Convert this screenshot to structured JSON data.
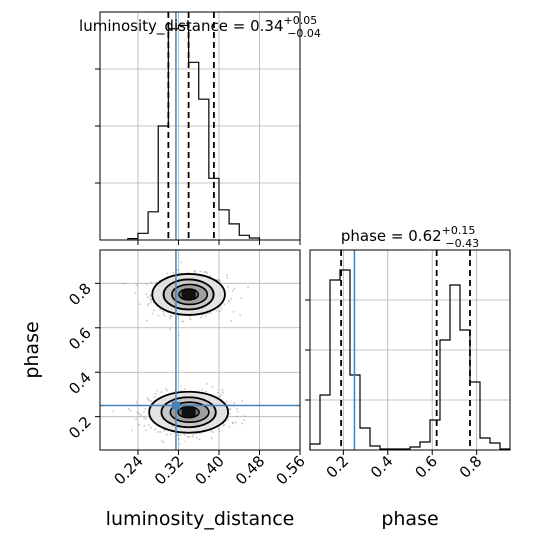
{
  "chart_data": {
    "type": "corner",
    "parameters": [
      "luminosity_distance",
      "phase"
    ],
    "truths": {
      "luminosity_distance": 0.315,
      "phase": 0.25
    },
    "titles": [
      {
        "param": "luminosity_distance",
        "text": "luminosity_distance = 0.34",
        "plus": "+0.05",
        "minus": "−0.04"
      },
      {
        "param": "phase",
        "text": "phase = 0.62",
        "plus": "+0.15",
        "minus": "−0.43"
      }
    ],
    "axis_labels": {
      "x": [
        "luminosity_distance",
        "phase"
      ],
      "y": [
        "phase"
      ]
    },
    "xlim_luminosity_distance": [
      0.165,
      0.56
    ],
    "xlim_phase": [
      0.05,
      0.95
    ],
    "ylim_phase": [
      0.05,
      0.95
    ],
    "ticks_luminosity_distance": [
      {
        "value": 0.24,
        "label": "0.24"
      },
      {
        "value": 0.32,
        "label": "0.32"
      },
      {
        "value": 0.4,
        "label": "0.40"
      },
      {
        "value": 0.48,
        "label": "0.48"
      },
      {
        "value": 0.56,
        "label": "0.56"
      }
    ],
    "ticks_phase": [
      {
        "value": 0.2,
        "label": "0.2"
      },
      {
        "value": 0.4,
        "label": "0.4"
      },
      {
        "value": 0.6,
        "label": "0.6"
      },
      {
        "value": 0.8,
        "label": "0.8"
      }
    ],
    "quantiles": {
      "luminosity_distance": [
        0.3,
        0.34,
        0.39
      ],
      "phase": [
        0.19,
        0.62,
        0.77
      ]
    },
    "hist_luminosity_distance": {
      "bin_edges": [
        0.22,
        0.24,
        0.26,
        0.28,
        0.3,
        0.32,
        0.34,
        0.36,
        0.38,
        0.4,
        0.42,
        0.44,
        0.46,
        0.48
      ],
      "counts": [
        2,
        10,
        42,
        170,
        315,
        320,
        265,
        210,
        92,
        45,
        24,
        7,
        3
      ],
      "ylim": [
        0,
        340
      ]
    },
    "hist_phase": {
      "bin_edges": [
        0.05,
        0.095,
        0.14,
        0.185,
        0.23,
        0.275,
        0.32,
        0.365,
        0.41,
        0.455,
        0.5,
        0.545,
        0.59,
        0.635,
        0.68,
        0.725,
        0.77,
        0.815,
        0.86,
        0.905,
        0.95
      ],
      "counts": [
        6,
        55,
        170,
        180,
        75,
        22,
        4,
        1,
        1,
        1,
        3,
        8,
        30,
        110,
        165,
        120,
        68,
        12,
        7,
        1
      ],
      "ylim": [
        0,
        200
      ]
    },
    "modes_2d": [
      {
        "x": 0.34,
        "y": 0.75,
        "sx": 0.035,
        "sy": 0.045
      },
      {
        "x": 0.34,
        "y": 0.22,
        "sx": 0.038,
        "sy": 0.045
      }
    ]
  }
}
